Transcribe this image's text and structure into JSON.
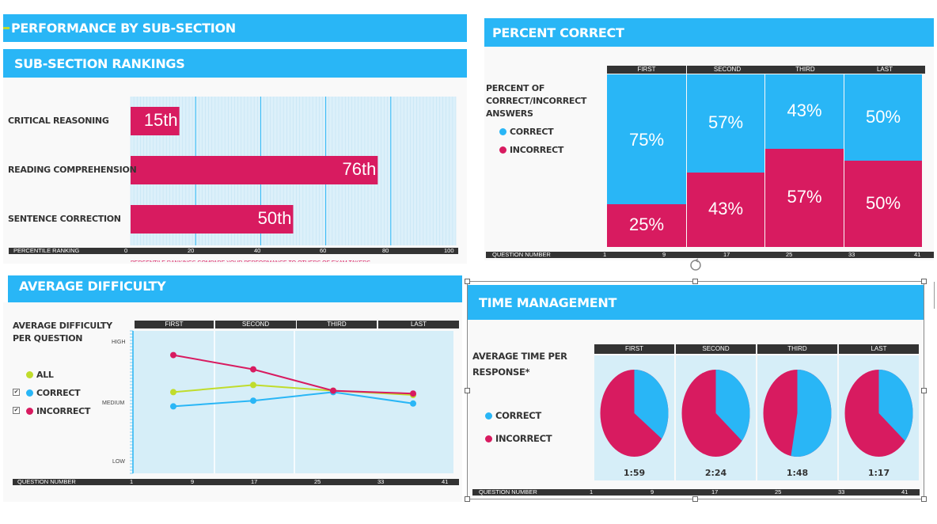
{
  "colors": {
    "accent": "#29b6f6",
    "correct": "#29b6f6",
    "incorrect": "#d81b60",
    "all": "#c0dc2c",
    "dark": "#333333",
    "plot_bg": "#d6eef8"
  },
  "performance_header": "PERFORMANCE BY SUB-SECTION",
  "rankings": {
    "title": "SUB-SECTION RANKINGS",
    "axis_label": "PERCENTILE RANKING",
    "footnote": "PERCENTILE RANKINGS COMPARE YOUR PERFORMANCE TO OTHERS OF EXAM TAKERS",
    "ticks": [
      "0",
      "20",
      "40",
      "60",
      "80",
      "100"
    ]
  },
  "percent_correct": {
    "title": "PERCENT CORRECT",
    "legend_title": "PERCENT OF CORRECT/INCORRECT ANSWERS",
    "legend_title_lines": [
      "PERCENT OF",
      "CORRECT/INCORRECT",
      "ANSWERS"
    ],
    "legend_correct": "CORRECT",
    "legend_incorrect": "INCORRECT",
    "axis_label": "QUESTION NUMBER",
    "ticks": [
      "1",
      "9",
      "17",
      "25",
      "33",
      "41"
    ]
  },
  "difficulty": {
    "title": "AVERAGE DIFFICULTY",
    "legend_title_lines": [
      "AVERAGE DIFFICULTY",
      "PER QUESTION"
    ],
    "legend_all": "ALL",
    "legend_correct": "CORRECT",
    "legend_incorrect": "INCORRECT",
    "check_correct": "✔",
    "check_incorrect": "✔",
    "axis_label": "QUESTION NUMBER",
    "ticks": [
      "1",
      "9",
      "17",
      "25",
      "33",
      "41"
    ],
    "y_high": "HIGH",
    "y_medium": "MEDIUM",
    "y_low": "LOW"
  },
  "time": {
    "title": "TIME MANAGEMENT",
    "legend_title_lines": [
      "AVERAGE TIME PER",
      "RESPONSE*"
    ],
    "legend_correct": "CORRECT",
    "legend_incorrect": "INCORRECT",
    "axis_label": "QUESTION NUMBER",
    "ticks": [
      "1",
      "9",
      "17",
      "25",
      "33",
      "41"
    ]
  },
  "chart_data": [
    {
      "type": "bar",
      "orientation": "horizontal",
      "title": "SUB-SECTION RANKINGS",
      "xlabel": "PERCENTILE RANKING",
      "xlim": [
        0,
        100
      ],
      "categories": [
        "CRITICAL REASONING",
        "READING COMPREHENSION",
        "SENTENCE CORRECTION"
      ],
      "values": [
        15,
        76,
        50
      ],
      "data_labels": [
        "15th",
        "76th",
        "50th"
      ]
    },
    {
      "type": "bar",
      "stacked": true,
      "title": "PERCENT CORRECT",
      "xlabel": "QUESTION NUMBER",
      "categories": [
        "FIRST",
        "SECOND",
        "THIRD",
        "LAST"
      ],
      "series": [
        {
          "name": "CORRECT",
          "values": [
            75,
            57,
            43,
            50
          ],
          "labels": [
            "75%",
            "57%",
            "43%",
            "50%"
          ]
        },
        {
          "name": "INCORRECT",
          "values": [
            25,
            43,
            57,
            50
          ],
          "labels": [
            "25%",
            "43%",
            "57%",
            "50%"
          ]
        }
      ]
    },
    {
      "type": "line",
      "title": "AVERAGE DIFFICULTY",
      "xlabel": "QUESTION NUMBER",
      "categories": [
        "FIRST",
        "SECOND",
        "THIRD",
        "LAST"
      ],
      "ylim": [
        0,
        1
      ],
      "series": [
        {
          "name": "ALL",
          "values": [
            0.57,
            0.62,
            0.58,
            0.55
          ]
        },
        {
          "name": "CORRECT",
          "values": [
            0.47,
            0.51,
            0.57,
            0.49
          ]
        },
        {
          "name": "INCORRECT",
          "values": [
            0.83,
            0.73,
            0.58,
            0.56
          ]
        }
      ]
    },
    {
      "type": "pie",
      "title": "TIME MANAGEMENT",
      "xlabel": "QUESTION NUMBER",
      "categories": [
        "FIRST",
        "SECOND",
        "THIRD",
        "LAST"
      ],
      "series": [
        {
          "name": "CORRECT",
          "values": [
            0.35,
            0.36,
            0.53,
            0.36
          ]
        },
        {
          "name": "INCORRECT",
          "values": [
            0.65,
            0.64,
            0.47,
            0.64
          ]
        }
      ],
      "labels": [
        "1:59",
        "2:24",
        "1:48",
        "1:17"
      ]
    }
  ]
}
